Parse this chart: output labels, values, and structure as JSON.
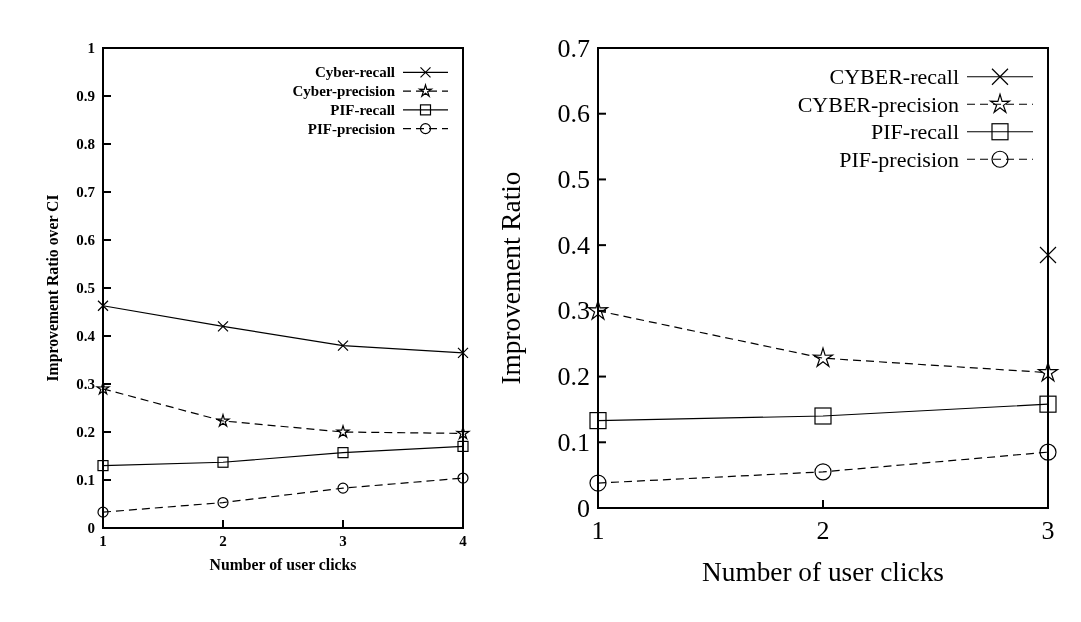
{
  "chart_data": [
    {
      "type": "line",
      "xlabel": "Number of user clicks",
      "ylabel": "Improvement Ratio over CI",
      "x": [
        1,
        2,
        3,
        4
      ],
      "xlim": [
        1,
        4
      ],
      "xticks": [
        1,
        2,
        3,
        4
      ],
      "ylim": [
        0,
        1
      ],
      "yticks": [
        0,
        0.1,
        0.2,
        0.3,
        0.4,
        0.5,
        0.6,
        0.7,
        0.8,
        0.9,
        1
      ],
      "legend": "top right",
      "series": [
        {
          "name": "Cyber-recall",
          "color": "#000000",
          "marker": "cross",
          "line_style": "solid",
          "values": [
            0.463,
            0.42,
            0.38,
            0.365
          ]
        },
        {
          "name": "Cyber-precision",
          "color": "#000000",
          "marker": "star",
          "line_style": "dashed",
          "values": [
            0.29,
            0.223,
            0.2,
            0.197
          ]
        },
        {
          "name": "PIF-recall",
          "color": "#000000",
          "marker": "square",
          "line_style": "solid",
          "values": [
            0.13,
            0.137,
            0.157,
            0.17
          ]
        },
        {
          "name": "PIF-precision",
          "color": "#000000",
          "marker": "circle",
          "line_style": "dashed",
          "values": [
            0.033,
            0.053,
            0.083,
            0.104
          ]
        }
      ]
    },
    {
      "type": "line",
      "xlabel": "Number of user clicks",
      "ylabel": "Improvement Ratio",
      "x": [
        1,
        2,
        3
      ],
      "xlim": [
        1,
        3
      ],
      "xticks": [
        1,
        2,
        3
      ],
      "ylim": [
        0,
        0.7
      ],
      "yticks": [
        0,
        0.1,
        0.2,
        0.3,
        0.4,
        0.5,
        0.6,
        0.7
      ],
      "legend": "top right",
      "series": [
        {
          "name": "CYBER-recall",
          "color": "#000000",
          "marker": "cross",
          "line_style": "solid",
          "values": [
            null,
            null,
            0.385
          ]
        },
        {
          "name": "CYBER-precision",
          "color": "#000000",
          "marker": "star",
          "line_style": "dashed",
          "values": [
            0.3,
            0.228,
            0.206
          ]
        },
        {
          "name": "PIF-recall",
          "color": "#000000",
          "marker": "square",
          "line_style": "solid",
          "values": [
            0.133,
            0.14,
            0.158
          ]
        },
        {
          "name": "PIF-precision",
          "color": "#000000",
          "marker": "circle",
          "line_style": "dashed",
          "values": [
            0.038,
            0.055,
            0.085
          ]
        }
      ]
    }
  ]
}
